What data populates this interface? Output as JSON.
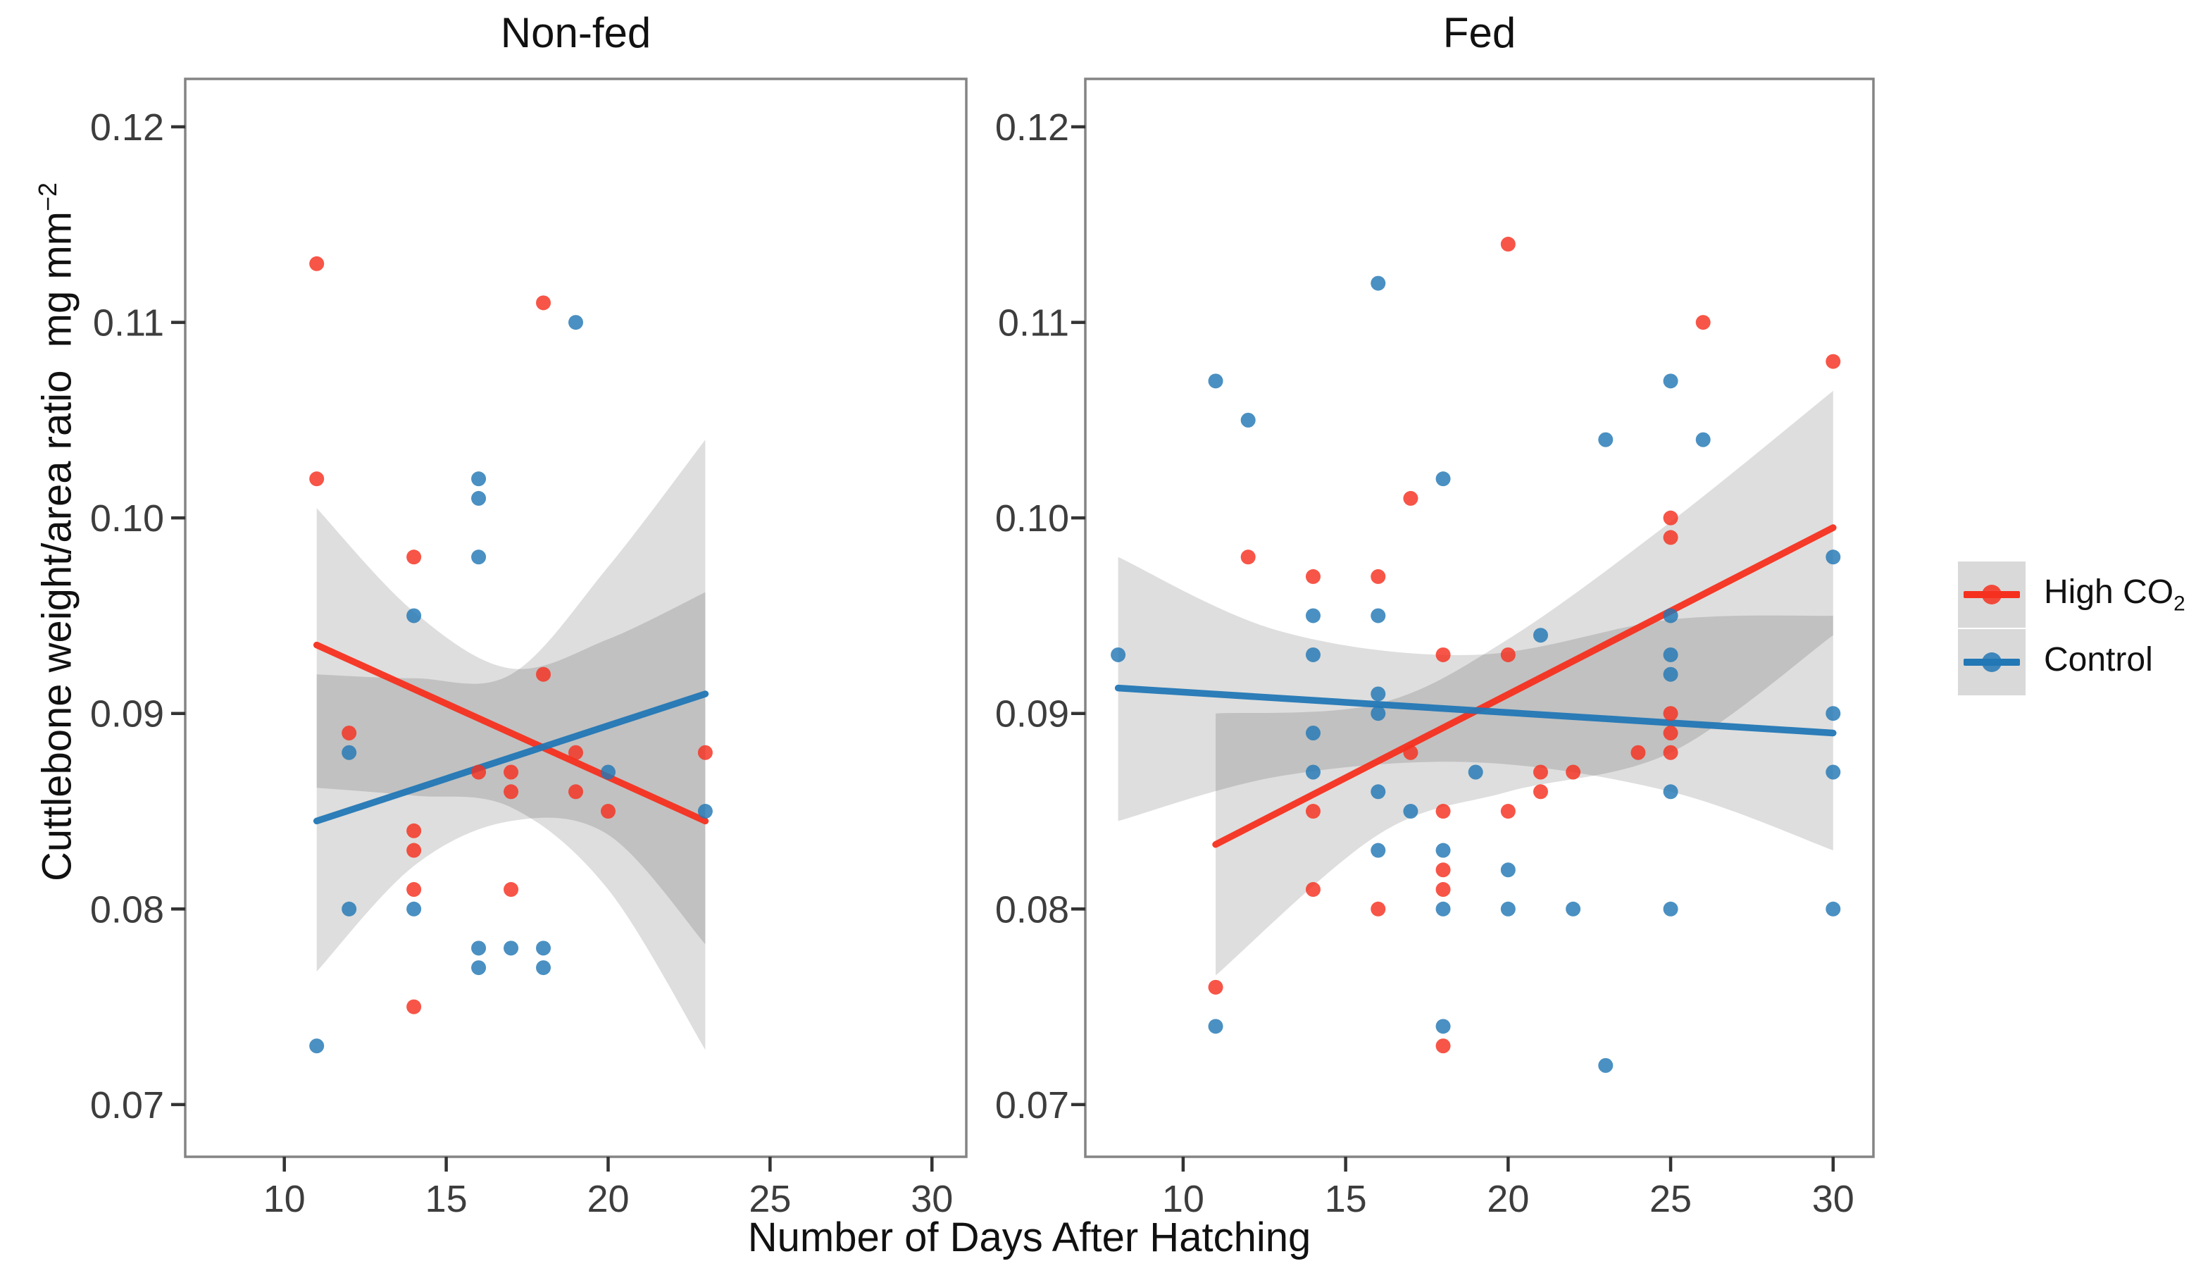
{
  "figure": {
    "x_axis_label": "Number of Days After Hatching",
    "y_axis_label_main": "Cuttlebone weight/area ratio  mg mm",
    "y_axis_label_sup": "−2",
    "colors": {
      "high_co2": "#F5301F",
      "control": "#2277B5",
      "ci_band": "rgba(0,0,0,0.13)",
      "panel_border": "#848484",
      "tick_mark": "#333333",
      "tick_label": "#3d3d3d",
      "title": "#111111"
    }
  },
  "legend": {
    "items": [
      {
        "name": "high-co2",
        "label_main": "High CO",
        "label_sub": "2",
        "color": "#F5301F"
      },
      {
        "name": "control",
        "label_main": "Control",
        "label_sub": "",
        "color": "#2277B5"
      }
    ]
  },
  "chart_data": [
    {
      "type": "scatter",
      "title": "Non-fed",
      "xlabel": "Number of Days After Hatching",
      "ylabel": "Cuttlebone weight/area ratio mg mm^-2",
      "xlim": [
        6.94,
        31.06
      ],
      "ylim": [
        0.06733,
        0.12245
      ],
      "x_ticks": [
        10,
        15,
        20,
        25,
        30
      ],
      "y_ticks": [
        0.07,
        0.08,
        0.09,
        0.1,
        0.11,
        0.12
      ],
      "grid": false,
      "legend_position": "right-of-figure",
      "series": [
        {
          "name": "High CO2",
          "color": "#F5301F",
          "points": [
            [
              11,
              0.113
            ],
            [
              18,
              0.111
            ],
            [
              11,
              0.102
            ],
            [
              14,
              0.098
            ],
            [
              18,
              0.092
            ],
            [
              12,
              0.089
            ],
            [
              19,
              0.088
            ],
            [
              23,
              0.088
            ],
            [
              16,
              0.087
            ],
            [
              17,
              0.087
            ],
            [
              17,
              0.086
            ],
            [
              19,
              0.086
            ],
            [
              20,
              0.085
            ],
            [
              14,
              0.084
            ],
            [
              14,
              0.083
            ],
            [
              14,
              0.081
            ],
            [
              17,
              0.081
            ],
            [
              14,
              0.075
            ]
          ],
          "trend": [
            [
              11,
              0.0935
            ],
            [
              23,
              0.0845
            ]
          ],
          "band": [
            [
              11,
              0.1005,
              0.0862
            ],
            [
              14,
              0.0952,
              0.0858
            ],
            [
              17,
              0.0923,
              0.0852
            ],
            [
              20,
              0.0938,
              0.081
            ],
            [
              23,
              0.0962,
              0.0728
            ]
          ]
        },
        {
          "name": "Control",
          "color": "#2277B5",
          "points": [
            [
              19,
              0.11
            ],
            [
              16,
              0.102
            ],
            [
              16,
              0.101
            ],
            [
              16,
              0.098
            ],
            [
              14,
              0.095
            ],
            [
              12,
              0.088
            ],
            [
              20,
              0.087
            ],
            [
              23,
              0.085
            ],
            [
              12,
              0.08
            ],
            [
              14,
              0.08
            ],
            [
              16,
              0.078
            ],
            [
              17,
              0.078
            ],
            [
              18,
              0.078
            ],
            [
              16,
              0.077
            ],
            [
              18,
              0.077
            ],
            [
              11,
              0.073
            ]
          ],
          "trend": [
            [
              11,
              0.0845
            ],
            [
              23,
              0.091
            ]
          ],
          "band": [
            [
              11,
              0.092,
              0.0768
            ],
            [
              14,
              0.0918,
              0.0822
            ],
            [
              17,
              0.092,
              0.0845
            ],
            [
              20,
              0.0975,
              0.0838
            ],
            [
              23,
              0.104,
              0.0782
            ]
          ]
        }
      ]
    },
    {
      "type": "scatter",
      "title": "Fed",
      "xlabel": "Number of Days After Hatching",
      "ylabel": "Cuttlebone weight/area ratio mg mm^-2",
      "xlim": [
        6.99,
        31.24
      ],
      "ylim": [
        0.06733,
        0.12245
      ],
      "x_ticks": [
        10,
        15,
        20,
        25,
        30
      ],
      "y_ticks": [
        0.07,
        0.08,
        0.09,
        0.1,
        0.11,
        0.12
      ],
      "grid": false,
      "legend_position": "right-of-figure",
      "series": [
        {
          "name": "High CO2",
          "color": "#F5301F",
          "points": [
            [
              20,
              0.114
            ],
            [
              26,
              0.11
            ],
            [
              30,
              0.108
            ],
            [
              17,
              0.101
            ],
            [
              25,
              0.1
            ],
            [
              25,
              0.099
            ],
            [
              12,
              0.098
            ],
            [
              14,
              0.097
            ],
            [
              16,
              0.097
            ],
            [
              18,
              0.093
            ],
            [
              20,
              0.093
            ],
            [
              25,
              0.09
            ],
            [
              25,
              0.089
            ],
            [
              17,
              0.088
            ],
            [
              24,
              0.088
            ],
            [
              25,
              0.088
            ],
            [
              21,
              0.087
            ],
            [
              22,
              0.087
            ],
            [
              21,
              0.086
            ],
            [
              14,
              0.085
            ],
            [
              18,
              0.085
            ],
            [
              20,
              0.085
            ],
            [
              18,
              0.082
            ],
            [
              18,
              0.081
            ],
            [
              14,
              0.081
            ],
            [
              16,
              0.08
            ],
            [
              11,
              0.076
            ],
            [
              18,
              0.073
            ]
          ],
          "trend": [
            [
              11,
              0.0833
            ],
            [
              30,
              0.0995
            ]
          ],
          "band": [
            [
              11,
              0.09,
              0.0766
            ],
            [
              16,
              0.0905,
              0.0838
            ],
            [
              20,
              0.0938,
              0.086
            ],
            [
              25,
              0.0998,
              0.088
            ],
            [
              30,
              0.1065,
              0.094
            ]
          ]
        },
        {
          "name": "Control",
          "color": "#2277B5",
          "points": [
            [
              16,
              0.112
            ],
            [
              11,
              0.107
            ],
            [
              25,
              0.107
            ],
            [
              12,
              0.105
            ],
            [
              23,
              0.104
            ],
            [
              26,
              0.104
            ],
            [
              18,
              0.102
            ],
            [
              30,
              0.098
            ],
            [
              14,
              0.095
            ],
            [
              16,
              0.095
            ],
            [
              25,
              0.095
            ],
            [
              21,
              0.094
            ],
            [
              8,
              0.093
            ],
            [
              14,
              0.093
            ],
            [
              25,
              0.093
            ],
            [
              25,
              0.092
            ],
            [
              16,
              0.091
            ],
            [
              16,
              0.09
            ],
            [
              30,
              0.09
            ],
            [
              14,
              0.089
            ],
            [
              14,
              0.087
            ],
            [
              19,
              0.087
            ],
            [
              30,
              0.087
            ],
            [
              16,
              0.086
            ],
            [
              25,
              0.086
            ],
            [
              17,
              0.085
            ],
            [
              16,
              0.083
            ],
            [
              18,
              0.083
            ],
            [
              20,
              0.082
            ],
            [
              18,
              0.08
            ],
            [
              20,
              0.08
            ],
            [
              22,
              0.08
            ],
            [
              25,
              0.08
            ],
            [
              30,
              0.08
            ],
            [
              11,
              0.074
            ],
            [
              18,
              0.074
            ],
            [
              23,
              0.072
            ]
          ],
          "trend": [
            [
              8,
              0.0913
            ],
            [
              30,
              0.089
            ]
          ],
          "band": [
            [
              8,
              0.098,
              0.0845
            ],
            [
              13,
              0.0942,
              0.0868
            ],
            [
              19,
              0.093,
              0.0875
            ],
            [
              25,
              0.0948,
              0.086
            ],
            [
              30,
              0.095,
              0.083
            ]
          ]
        }
      ]
    }
  ]
}
